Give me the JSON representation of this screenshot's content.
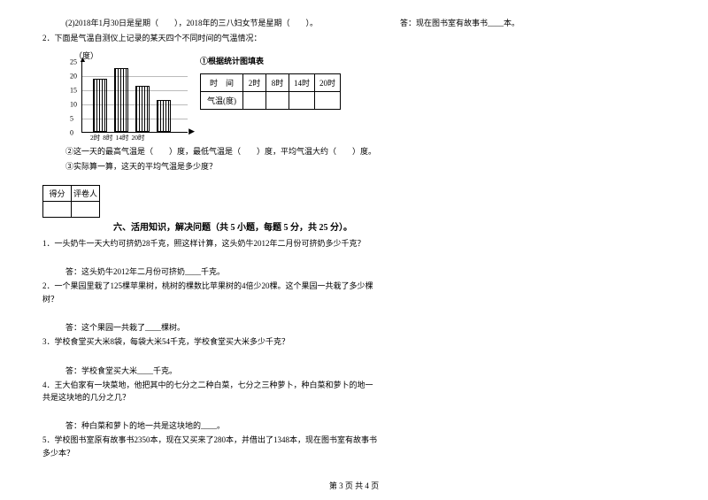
{
  "leftCol": {
    "q1b": "(2)2018年1月30日是星期（　　），2018年的三八妇女节是星期（　　）。",
    "q2": "2．下面是气温自测仪上记录的某天四个不同时间的气温情况：",
    "chart": {
      "unit": "（度）",
      "yticks": [
        "25",
        "20",
        "15",
        "10",
        "5",
        "0"
      ],
      "bars": [
        {
          "left": 12,
          "height": 60
        },
        {
          "left": 36,
          "height": 72
        },
        {
          "left": 60,
          "height": 52
        },
        {
          "left": 84,
          "height": 36
        }
      ],
      "xlabels": [
        "2时",
        "8时",
        "14时",
        "20时"
      ]
    },
    "chartTitle": "①根据统计图填表",
    "table": {
      "r1": [
        "时　间",
        "2时",
        "8时",
        "14时",
        "20时"
      ],
      "r2label": "气温(度)"
    },
    "q2b": "②这一天的最高气温是（　　）度，最低气温是（　　）度，平均气温大约（　　）度。",
    "q2c": "③实际算一算，这天的平均气温是多少度？",
    "scoreHeaders": [
      "得分",
      "评卷人"
    ],
    "sectionTitle": "六、活用知识，解决问题（共 5 小题，每题 5 分，共 25 分）。",
    "qs": [
      {
        "q": "1．一头奶牛一天大约可挤奶28千克，照这样计算，这头奶牛2012年二月份可挤奶多少千克？",
        "a": "答：这头奶牛2012年二月份可挤奶____千克。"
      },
      {
        "q": "2．一个果园里栽了125棵苹果树，桃树的棵数比苹果树的4倍少20棵。这个果园一共栽了多少棵树？",
        "a": "答：这个果园一共栽了____棵树。"
      },
      {
        "q": "3．学校食堂买大米8袋，每袋大米54千克，学校食堂买大米多少千克？",
        "a": "答：学校食堂买大米____千克。"
      },
      {
        "q": "4．王大伯家有一块菜地，他把其中的七分之二种白菜，七分之三种萝卜，种白菜和萝卜的地一共是这块地的几分之几？",
        "a": "答：种白菜和萝卜的地一共是这块地的____。"
      },
      {
        "q": "5．学校图书室原有故事书2350本，现在又买来了280本，并借出了1348本，现在图书室有故事书多少本？",
        "a": ""
      }
    ]
  },
  "rightCol": {
    "ans": "答：现在图书室有故事书____本。"
  },
  "footer": "第 3 页 共 4 页"
}
